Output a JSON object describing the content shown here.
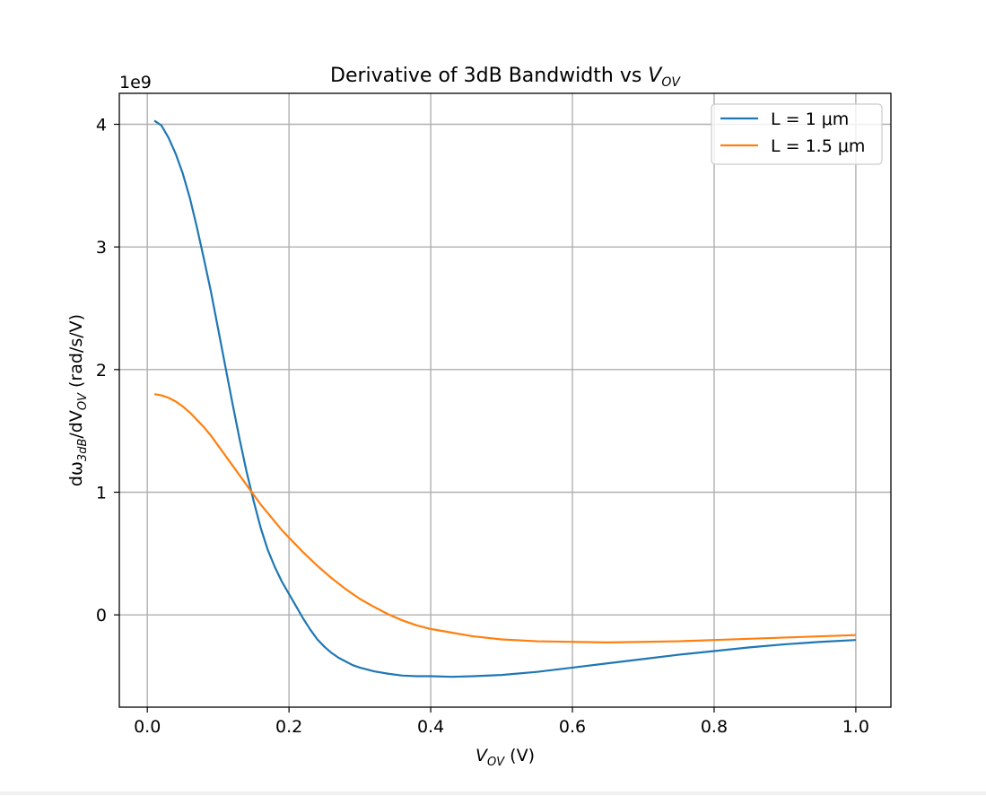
{
  "chart_data": {
    "type": "line",
    "title_main": "Derivative of 3dB Bandwidth vs ",
    "title_var": "V",
    "title_var_sub": "OV",
    "xlabel_var": "V",
    "xlabel_var_sub": "OV",
    "xlabel_unit": " (V)",
    "ylabel_prefix": "dω",
    "ylabel_sub1": "3dB",
    "ylabel_mid": "/dV",
    "ylabel_sub2": "OV",
    "ylabel_unit": " (rad/s/V)",
    "y_offset_text": "1e9",
    "y_scale": 1000000000,
    "xlim": [
      -0.0395,
      1.0495
    ],
    "ylim": [
      -0.7525,
      4.2525
    ],
    "x_ticks": [
      0.0,
      0.2,
      0.4,
      0.6,
      0.8,
      1.0
    ],
    "x_tick_labels": [
      "0.0",
      "0.2",
      "0.4",
      "0.6",
      "0.8",
      "1.0"
    ],
    "y_ticks": [
      0,
      1,
      2,
      3,
      4
    ],
    "y_tick_labels": [
      "0",
      "1",
      "2",
      "3",
      "4"
    ],
    "grid": true,
    "legend_position": "top-right",
    "series": [
      {
        "name": "L = 1 μm",
        "color": "#1f77b4",
        "x": [
          0.01,
          0.02,
          0.03,
          0.04,
          0.05,
          0.06,
          0.07,
          0.08,
          0.09,
          0.1,
          0.11,
          0.12,
          0.13,
          0.14,
          0.15,
          0.16,
          0.17,
          0.18,
          0.19,
          0.2,
          0.21,
          0.22,
          0.23,
          0.24,
          0.25,
          0.26,
          0.27,
          0.28,
          0.29,
          0.3,
          0.32,
          0.34,
          0.36,
          0.38,
          0.4,
          0.43,
          0.46,
          0.5,
          0.55,
          0.6,
          0.65,
          0.7,
          0.75,
          0.8,
          0.85,
          0.9,
          0.95,
          1.0
        ],
        "y": [
          4.03,
          3.99,
          3.89,
          3.76,
          3.6,
          3.4,
          3.16,
          2.9,
          2.63,
          2.33,
          2.03,
          1.73,
          1.44,
          1.17,
          0.93,
          0.71,
          0.53,
          0.39,
          0.27,
          0.17,
          0.07,
          -0.03,
          -0.12,
          -0.2,
          -0.26,
          -0.31,
          -0.35,
          -0.38,
          -0.41,
          -0.43,
          -0.46,
          -0.48,
          -0.495,
          -0.5,
          -0.5,
          -0.505,
          -0.5,
          -0.49,
          -0.465,
          -0.43,
          -0.395,
          -0.36,
          -0.325,
          -0.295,
          -0.265,
          -0.24,
          -0.22,
          -0.205
        ]
      },
      {
        "name": "L = 1.5 μm",
        "color": "#ff7f0e",
        "x": [
          0.01,
          0.02,
          0.03,
          0.04,
          0.05,
          0.06,
          0.07,
          0.08,
          0.09,
          0.1,
          0.11,
          0.12,
          0.13,
          0.14,
          0.15,
          0.16,
          0.17,
          0.18,
          0.19,
          0.2,
          0.22,
          0.24,
          0.26,
          0.28,
          0.3,
          0.32,
          0.34,
          0.36,
          0.38,
          0.4,
          0.43,
          0.46,
          0.5,
          0.55,
          0.6,
          0.65,
          0.7,
          0.75,
          0.8,
          0.85,
          0.9,
          0.95,
          1.0
        ],
        "y": [
          1.8,
          1.79,
          1.77,
          1.74,
          1.7,
          1.65,
          1.59,
          1.53,
          1.46,
          1.38,
          1.3,
          1.22,
          1.14,
          1.06,
          0.98,
          0.9,
          0.83,
          0.76,
          0.69,
          0.63,
          0.51,
          0.4,
          0.3,
          0.21,
          0.13,
          0.065,
          0.005,
          -0.045,
          -0.085,
          -0.115,
          -0.145,
          -0.175,
          -0.2,
          -0.215,
          -0.22,
          -0.225,
          -0.22,
          -0.215,
          -0.205,
          -0.195,
          -0.185,
          -0.175,
          -0.165
        ]
      }
    ]
  }
}
